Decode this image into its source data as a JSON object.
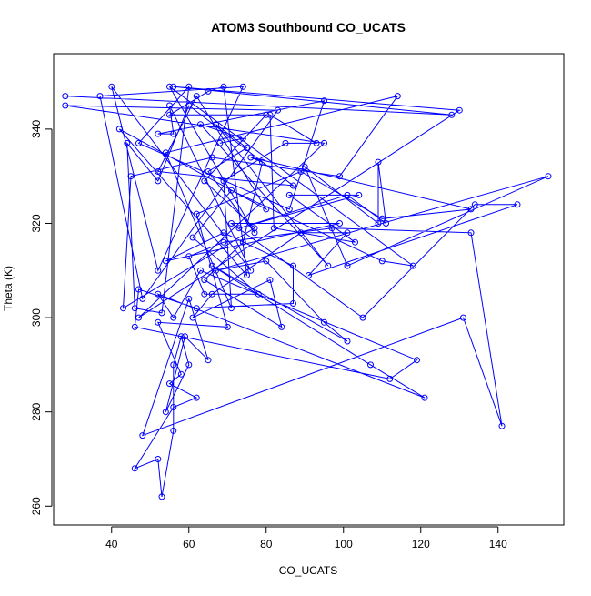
{
  "chart_data": {
    "type": "line",
    "title": "ATOM3 Southbound CO_UCATS",
    "xlabel": "CO_UCATS",
    "ylabel": "Theta (K)",
    "xlim": [
      25,
      157
    ],
    "ylim": [
      256,
      356
    ],
    "xticks": [
      40,
      60,
      80,
      100,
      120,
      140
    ],
    "yticks": [
      260,
      280,
      300,
      320,
      340
    ],
    "grid": false,
    "legend": "none",
    "series_color": "#0000ff",
    "marker": "open-circle",
    "series": [
      {
        "name": "",
        "points": [
          [
            28,
            347
          ],
          [
            128,
            343
          ],
          [
            56,
            349
          ],
          [
            130,
            344
          ],
          [
            47,
            300
          ],
          [
            95,
            337
          ],
          [
            28,
            345
          ],
          [
            83,
            344
          ],
          [
            48,
            304
          ],
          [
            37,
            347
          ],
          [
            74,
            349
          ],
          [
            52,
            310
          ],
          [
            40,
            349
          ],
          [
            76,
            310
          ],
          [
            55,
            345
          ],
          [
            56,
            339
          ],
          [
            52,
            339
          ],
          [
            95,
            346
          ],
          [
            86,
            323
          ],
          [
            47,
            337
          ],
          [
            60,
            349
          ],
          [
            53,
            301
          ],
          [
            46,
            302
          ],
          [
            44,
            337
          ],
          [
            52,
            329
          ],
          [
            60,
            345
          ],
          [
            87,
            328
          ],
          [
            52,
            331
          ],
          [
            62,
            347
          ],
          [
            80,
            323
          ],
          [
            42,
            340
          ],
          [
            75,
            309
          ],
          [
            69,
            349
          ],
          [
            65,
            348
          ],
          [
            55,
            343
          ],
          [
            80,
            343
          ],
          [
            64,
            329
          ],
          [
            77,
            319
          ],
          [
            43,
            302
          ],
          [
            45,
            330
          ],
          [
            66,
            334
          ],
          [
            99,
            330
          ],
          [
            114,
            347
          ],
          [
            54,
            335
          ],
          [
            71,
            302
          ],
          [
            69,
            329
          ],
          [
            85,
            337
          ],
          [
            93,
            337
          ],
          [
            81,
            343
          ],
          [
            82,
            319
          ],
          [
            103,
            316
          ],
          [
            86,
            326
          ],
          [
            104,
            326
          ],
          [
            73,
            319
          ],
          [
            101,
            326
          ],
          [
            111,
            320
          ],
          [
            109,
            333
          ],
          [
            109,
            320
          ],
          [
            90,
            332
          ],
          [
            101,
            311
          ],
          [
            153,
            330
          ],
          [
            67,
            310
          ],
          [
            80,
            312
          ],
          [
            95,
            299
          ],
          [
            101,
            295
          ],
          [
            66,
            311
          ],
          [
            107,
            290
          ],
          [
            121,
            283
          ],
          [
            52,
            305
          ],
          [
            56,
            300
          ],
          [
            63,
            310
          ],
          [
            119,
            291
          ],
          [
            112,
            287
          ],
          [
            46,
            298
          ],
          [
            47,
            306
          ],
          [
            62,
            302
          ],
          [
            87,
            303
          ],
          [
            87,
            311
          ],
          [
            69,
            318
          ],
          [
            54,
            312
          ],
          [
            99,
            320
          ],
          [
            71,
            320
          ],
          [
            105,
            300
          ],
          [
            134,
            324
          ],
          [
            145,
            324
          ],
          [
            91,
            309
          ],
          [
            101,
            318
          ],
          [
            89,
            318
          ],
          [
            66,
            305
          ],
          [
            61,
            300
          ],
          [
            81,
            308
          ],
          [
            84,
            298
          ],
          [
            64,
            308
          ],
          [
            74,
            316
          ],
          [
            79,
            333
          ],
          [
            76,
            334
          ],
          [
            133,
            323
          ],
          [
            110,
            321
          ],
          [
            89,
            331
          ],
          [
            62,
            322
          ],
          [
            70,
            298
          ],
          [
            52,
            299
          ],
          [
            58,
            288
          ],
          [
            55,
            286
          ],
          [
            62,
            283
          ],
          [
            56,
            281
          ],
          [
            46,
            268
          ],
          [
            52,
            270
          ],
          [
            53,
            262
          ],
          [
            56,
            276
          ],
          [
            56,
            290
          ],
          [
            58,
            296
          ],
          [
            60,
            290
          ],
          [
            54,
            280
          ],
          [
            59,
            296
          ],
          [
            65,
            291
          ],
          [
            60,
            304
          ],
          [
            48,
            275
          ],
          [
            131,
            300
          ],
          [
            141,
            277
          ],
          [
            133,
            318
          ],
          [
            97,
            319
          ],
          [
            69,
            316
          ],
          [
            60,
            313
          ],
          [
            64,
            305
          ],
          [
            78,
            305
          ],
          [
            61,
            317
          ],
          [
            71,
            327
          ],
          [
            110,
            312
          ],
          [
            118,
            311
          ],
          [
            55,
            349
          ],
          [
            77,
            318
          ],
          [
            65,
            331
          ],
          [
            75,
            336
          ],
          [
            67,
            341
          ],
          [
            96,
            311
          ],
          [
            63,
            341
          ],
          [
            74,
            338
          ],
          [
            68,
            337
          ]
        ]
      }
    ]
  }
}
